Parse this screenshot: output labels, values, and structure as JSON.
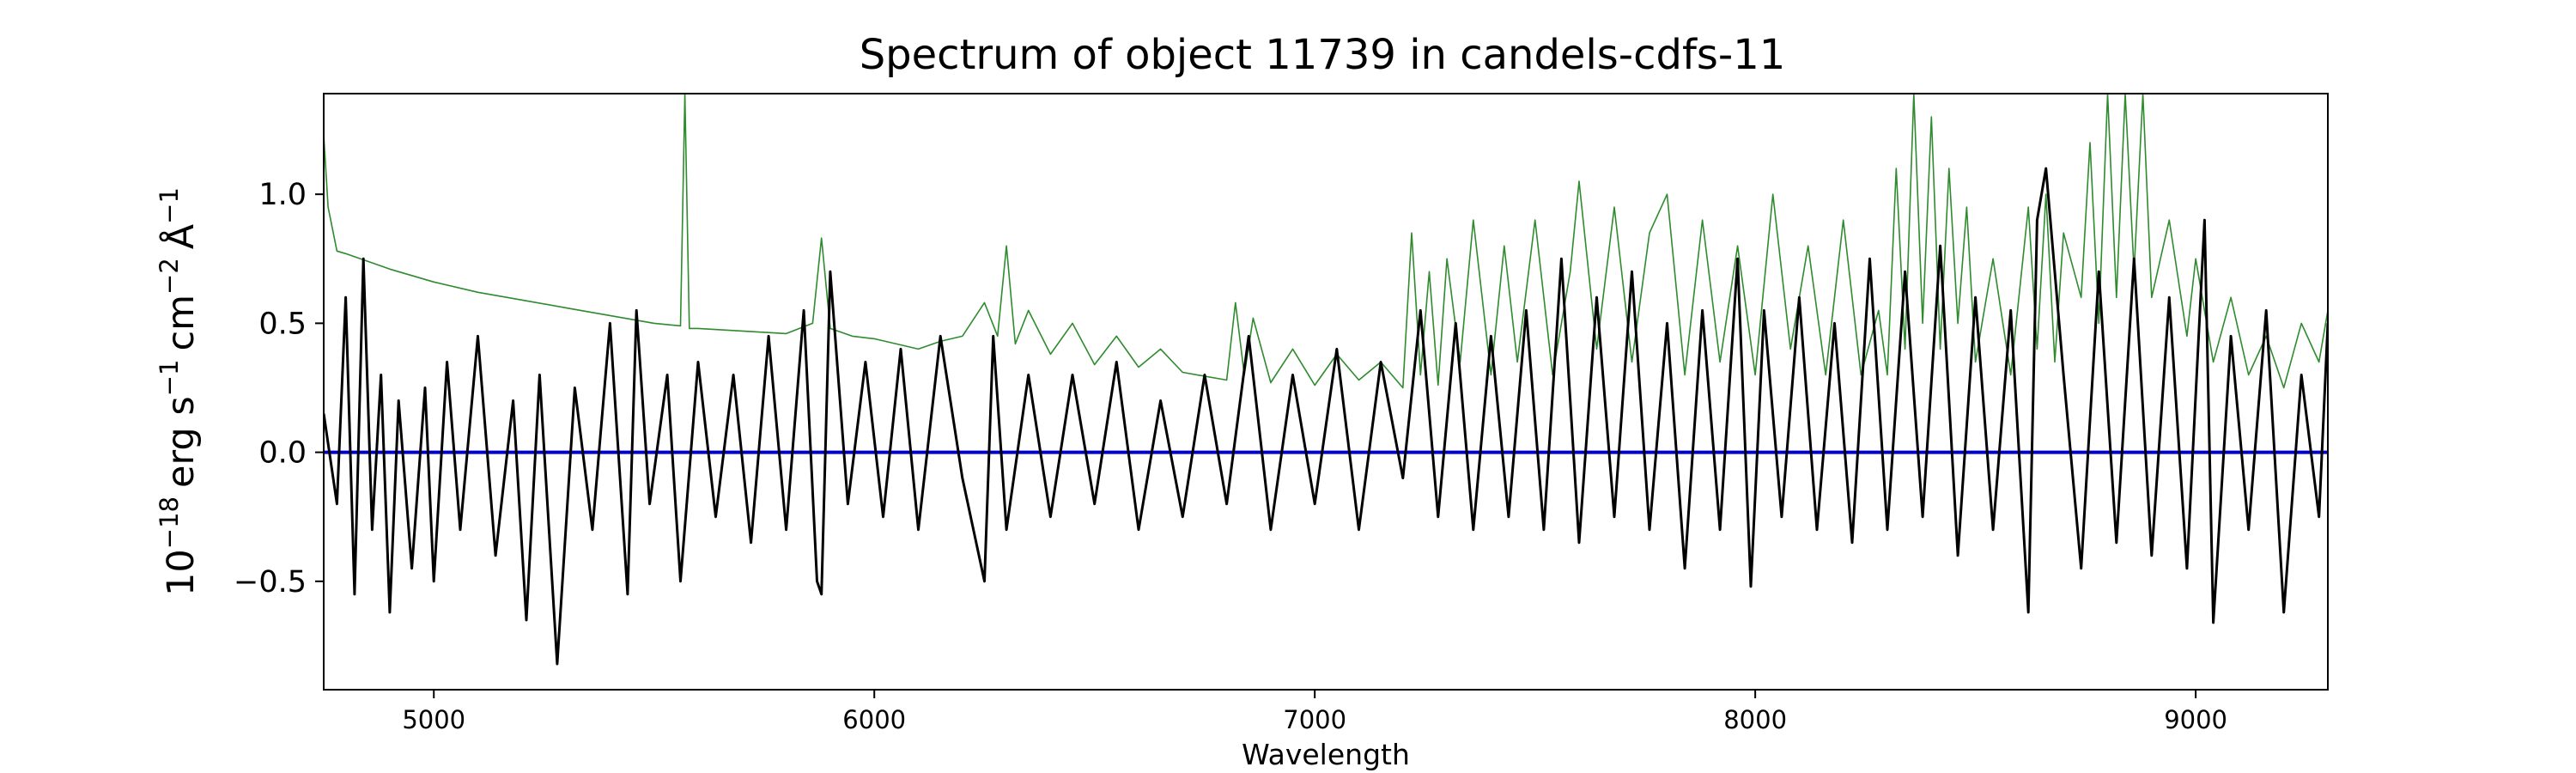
{
  "chart_data": {
    "type": "line",
    "title": "Spectrum of object 11739 in candels-cdfs-11",
    "xlabel": "Wavelength",
    "ylabel": {
      "base": "10",
      "base_exp": "−18",
      "unit1": "erg s",
      "unit1_exp": "−1",
      "unit2": "cm",
      "unit2_exp": "−2",
      "unit3": "Å",
      "unit3_exp": "−1"
    },
    "xlim": [
      4750,
      9300
    ],
    "ylim": [
      -0.92,
      1.39
    ],
    "x_ticks": [
      5000,
      6000,
      7000,
      8000,
      9000
    ],
    "x_tick_labels": [
      "5000",
      "6000",
      "7000",
      "8000",
      "9000"
    ],
    "y_ticks": [
      -0.5,
      0.0,
      0.5,
      1.0
    ],
    "y_tick_labels": [
      "−0.5",
      "0.0",
      "0.5",
      "1.0"
    ],
    "grid": false,
    "legend": "none",
    "colors": {
      "flux": "#000000",
      "error": "#2e8b2e",
      "zero": "#0000cc"
    },
    "series": [
      {
        "id": "flux",
        "x": [
          4750,
          4780,
          4800,
          4820,
          4840,
          4860,
          4880,
          4900,
          4920,
          4950,
          4980,
          5000,
          5030,
          5060,
          5100,
          5140,
          5180,
          5210,
          5240,
          5280,
          5320,
          5360,
          5400,
          5440,
          5460,
          5490,
          5530,
          5560,
          5600,
          5640,
          5680,
          5720,
          5760,
          5800,
          5840,
          5870,
          5880,
          5900,
          5940,
          5980,
          6020,
          6060,
          6100,
          6150,
          6200,
          6250,
          6270,
          6300,
          6350,
          6400,
          6450,
          6500,
          6550,
          6600,
          6650,
          6700,
          6750,
          6800,
          6850,
          6900,
          6950,
          7000,
          7050,
          7100,
          7150,
          7200,
          7240,
          7280,
          7320,
          7360,
          7400,
          7440,
          7480,
          7520,
          7560,
          7600,
          7640,
          7680,
          7720,
          7760,
          7800,
          7840,
          7880,
          7920,
          7960,
          7990,
          8020,
          8060,
          8100,
          8140,
          8180,
          8220,
          8260,
          8300,
          8340,
          8380,
          8420,
          8460,
          8500,
          8540,
          8580,
          8620,
          8640,
          8660,
          8700,
          8740,
          8780,
          8820,
          8860,
          8900,
          8940,
          8980,
          9020,
          9040,
          9080,
          9120,
          9160,
          9200,
          9240,
          9280,
          9300
        ],
        "y": [
          0.15,
          -0.2,
          0.6,
          -0.55,
          0.75,
          -0.3,
          0.3,
          -0.62,
          0.2,
          -0.45,
          0.25,
          -0.5,
          0.35,
          -0.3,
          0.45,
          -0.4,
          0.2,
          -0.65,
          0.3,
          -0.82,
          0.25,
          -0.3,
          0.5,
          -0.55,
          0.55,
          -0.2,
          0.3,
          -0.5,
          0.35,
          -0.25,
          0.3,
          -0.35,
          0.45,
          -0.3,
          0.55,
          -0.5,
          -0.55,
          0.7,
          -0.2,
          0.35,
          -0.25,
          0.4,
          -0.3,
          0.45,
          -0.1,
          -0.5,
          0.45,
          -0.3,
          0.3,
          -0.25,
          0.3,
          -0.2,
          0.35,
          -0.3,
          0.2,
          -0.25,
          0.3,
          -0.2,
          0.45,
          -0.3,
          0.3,
          -0.2,
          0.4,
          -0.3,
          0.35,
          -0.1,
          0.55,
          -0.25,
          0.5,
          -0.3,
          0.45,
          -0.25,
          0.55,
          -0.3,
          0.75,
          -0.35,
          0.6,
          -0.25,
          0.7,
          -0.3,
          0.5,
          -0.45,
          0.55,
          -0.3,
          0.75,
          -0.52,
          0.55,
          -0.25,
          0.6,
          -0.3,
          0.5,
          -0.35,
          0.75,
          -0.3,
          0.7,
          -0.25,
          0.8,
          -0.4,
          0.6,
          -0.3,
          0.55,
          -0.62,
          0.9,
          1.1,
          0.3,
          -0.45,
          0.7,
          -0.35,
          0.75,
          -0.4,
          0.6,
          -0.45,
          0.9,
          -0.66,
          0.45,
          -0.3,
          0.55,
          -0.62,
          0.3,
          -0.25,
          0.5
        ]
      },
      {
        "id": "error",
        "x": [
          4750,
          4760,
          4780,
          4800,
          4850,
          4900,
          5000,
          5100,
          5200,
          5300,
          5400,
          5500,
          5560,
          5570,
          5580,
          5600,
          5700,
          5800,
          5860,
          5880,
          5900,
          5950,
          6000,
          6100,
          6150,
          6200,
          6250,
          6280,
          6300,
          6320,
          6350,
          6400,
          6450,
          6500,
          6550,
          6600,
          6650,
          6700,
          6800,
          6820,
          6840,
          6860,
          6900,
          6950,
          7000,
          7050,
          7100,
          7150,
          7200,
          7220,
          7240,
          7260,
          7280,
          7300,
          7330,
          7360,
          7400,
          7430,
          7460,
          7500,
          7540,
          7580,
          7600,
          7640,
          7680,
          7720,
          7760,
          7800,
          7840,
          7880,
          7920,
          7960,
          8000,
          8040,
          8080,
          8120,
          8160,
          8200,
          8240,
          8280,
          8300,
          8320,
          8340,
          8360,
          8380,
          8400,
          8420,
          8440,
          8460,
          8480,
          8500,
          8540,
          8580,
          8620,
          8640,
          8660,
          8680,
          8700,
          8740,
          8760,
          8780,
          8800,
          8820,
          8840,
          8860,
          8880,
          8900,
          8940,
          8980,
          9000,
          9040,
          9080,
          9120,
          9160,
          9200,
          9240,
          9280,
          9300
        ],
        "y": [
          1.23,
          0.95,
          0.78,
          0.77,
          0.74,
          0.71,
          0.66,
          0.62,
          0.59,
          0.56,
          0.53,
          0.5,
          0.49,
          1.39,
          0.48,
          0.48,
          0.47,
          0.46,
          0.5,
          0.83,
          0.48,
          0.45,
          0.44,
          0.4,
          0.43,
          0.45,
          0.58,
          0.45,
          0.8,
          0.42,
          0.55,
          0.38,
          0.5,
          0.34,
          0.45,
          0.33,
          0.4,
          0.31,
          0.28,
          0.58,
          0.3,
          0.52,
          0.27,
          0.4,
          0.26,
          0.38,
          0.28,
          0.35,
          0.25,
          0.85,
          0.3,
          0.7,
          0.26,
          0.75,
          0.35,
          0.9,
          0.3,
          0.8,
          0.35,
          0.9,
          0.3,
          0.7,
          1.05,
          0.4,
          0.95,
          0.35,
          0.85,
          1.0,
          0.3,
          0.9,
          0.35,
          0.8,
          0.3,
          1.0,
          0.4,
          0.8,
          0.3,
          0.9,
          0.3,
          0.55,
          0.3,
          1.1,
          0.4,
          1.39,
          0.5,
          1.3,
          0.4,
          1.1,
          0.5,
          0.95,
          0.35,
          0.75,
          0.3,
          0.95,
          0.4,
          1.0,
          0.35,
          0.85,
          0.6,
          1.2,
          0.5,
          1.39,
          0.6,
          1.39,
          0.7,
          1.39,
          0.6,
          0.9,
          0.45,
          0.75,
          0.35,
          0.6,
          0.3,
          0.45,
          0.25,
          0.5,
          0.35,
          0.55
        ]
      },
      {
        "id": "zero",
        "x": [
          4750,
          9300
        ],
        "y": [
          0.0,
          0.0
        ]
      }
    ]
  }
}
